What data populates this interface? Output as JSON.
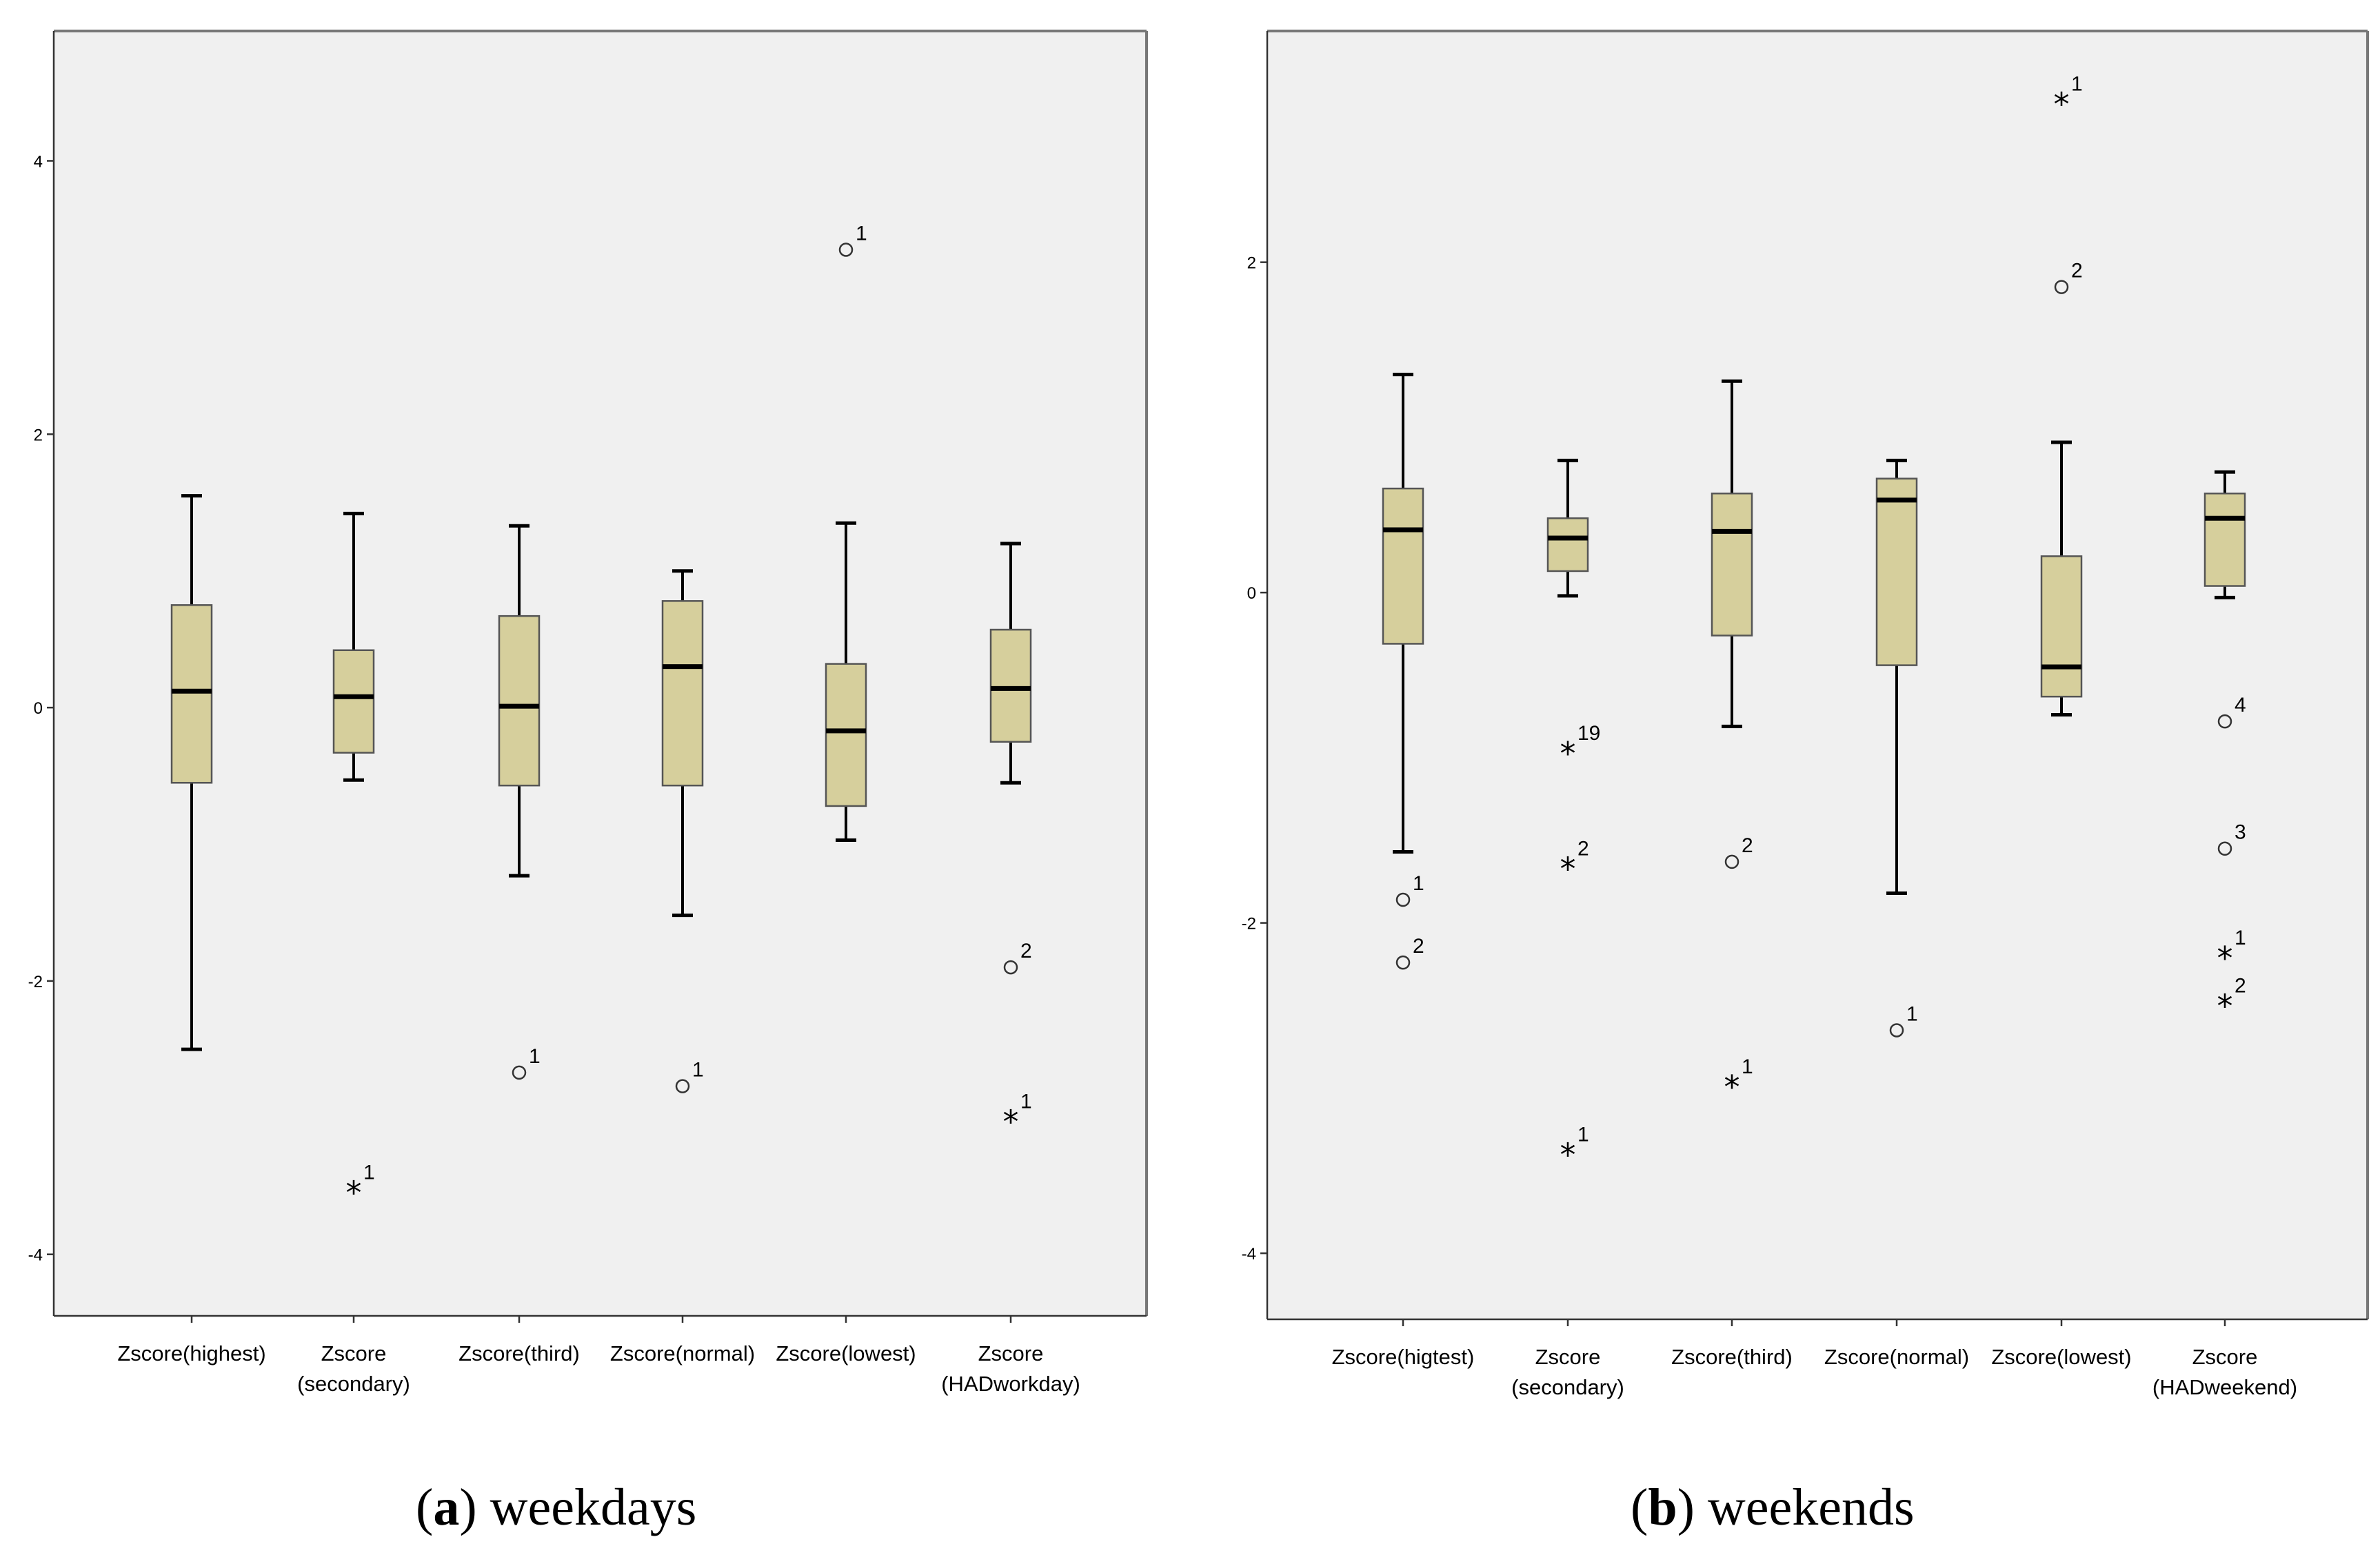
{
  "chart_data": [
    {
      "type": "boxplot",
      "panel_letter": "a",
      "caption": "weekdays",
      "ylim": [
        -4.45,
        4.95
      ],
      "yticks": [
        4,
        2,
        0,
        -2,
        -4
      ],
      "ytick_labels": [
        "4",
        "2",
        "0",
        "-2",
        "-4"
      ],
      "grid": false,
      "series": [
        {
          "label": [
            "Zscore(highest)"
          ],
          "whisker_low": -2.5,
          "q1": -0.55,
          "median": 0.12,
          "q3": 0.75,
          "whisker_high": 1.55,
          "outliers": []
        },
        {
          "label": [
            "Zscore",
            "(secondary)"
          ],
          "whisker_low": -0.53,
          "q1": -0.33,
          "median": 0.08,
          "q3": 0.42,
          "whisker_high": 1.42,
          "outliers": [
            {
              "value": -3.52,
              "marker": "*",
              "label": "1"
            }
          ]
        },
        {
          "label": [
            "Zscore(third)"
          ],
          "whisker_low": -1.23,
          "q1": -0.57,
          "median": 0.01,
          "q3": 0.67,
          "whisker_high": 1.33,
          "outliers": [
            {
              "value": -2.67,
              "marker": "o",
              "label": "1"
            }
          ]
        },
        {
          "label": [
            "Zscore(normal)"
          ],
          "whisker_low": -1.52,
          "q1": -0.57,
          "median": 0.3,
          "q3": 0.78,
          "whisker_high": 1.0,
          "outliers": [
            {
              "value": -2.77,
              "marker": "o",
              "label": "1"
            }
          ]
        },
        {
          "label": [
            "Zscore(lowest)"
          ],
          "whisker_low": -0.97,
          "q1": -0.72,
          "median": -0.17,
          "q3": 0.32,
          "whisker_high": 1.35,
          "outliers": [
            {
              "value": 3.35,
              "marker": "o",
              "label": "1"
            }
          ]
        },
        {
          "label": [
            "Zscore",
            "(HADworkday)"
          ],
          "whisker_low": -0.55,
          "q1": -0.25,
          "median": 0.14,
          "q3": 0.57,
          "whisker_high": 1.2,
          "outliers": [
            {
              "value": -1.9,
              "marker": "o",
              "label": "2"
            },
            {
              "value": -3.0,
              "marker": "*",
              "label": "1"
            }
          ]
        }
      ]
    },
    {
      "type": "boxplot",
      "panel_letter": "b",
      "caption": "weekends",
      "ylim": [
        -4.4,
        3.4
      ],
      "yticks": [
        2,
        0,
        -2,
        -4
      ],
      "ytick_labels": [
        "2",
        "0",
        "-2",
        "-4"
      ],
      "grid": false,
      "series": [
        {
          "label": [
            "Zscore(higtest)"
          ],
          "whisker_low": -1.57,
          "q1": -0.31,
          "median": 0.38,
          "q3": 0.63,
          "whisker_high": 1.32,
          "outliers": [
            {
              "value": -1.86,
              "marker": "o",
              "label": "1"
            },
            {
              "value": -2.24,
              "marker": "o",
              "label": "2"
            }
          ]
        },
        {
          "label": [
            "Zscore",
            "(secondary)"
          ],
          "whisker_low": -0.02,
          "q1": 0.13,
          "median": 0.33,
          "q3": 0.45,
          "whisker_high": 0.8,
          "outliers": [
            {
              "value": -0.95,
              "marker": "*",
              "label": "19"
            },
            {
              "value": -1.65,
              "marker": "*",
              "label": "2"
            },
            {
              "value": -3.38,
              "marker": "*",
              "label": "1"
            }
          ]
        },
        {
          "label": [
            "Zscore(third)"
          ],
          "whisker_low": -0.81,
          "q1": -0.26,
          "median": 0.37,
          "q3": 0.6,
          "whisker_high": 1.28,
          "outliers": [
            {
              "value": -1.63,
              "marker": "o",
              "label": "2"
            },
            {
              "value": -2.97,
              "marker": "*",
              "label": "1"
            }
          ]
        },
        {
          "label": [
            "Zscore(normal)"
          ],
          "whisker_low": -1.82,
          "q1": -0.44,
          "median": 0.56,
          "q3": 0.69,
          "whisker_high": 0.8,
          "outliers": [
            {
              "value": -2.65,
              "marker": "o",
              "label": "1"
            }
          ]
        },
        {
          "label": [
            "Zscore(lowest)"
          ],
          "whisker_low": -0.74,
          "q1": -0.63,
          "median": -0.45,
          "q3": 0.22,
          "whisker_high": 0.91,
          "outliers": [
            {
              "value": 2.98,
              "marker": "*",
              "label": "1"
            },
            {
              "value": 1.85,
              "marker": "o",
              "label": "2"
            }
          ]
        },
        {
          "label": [
            "Zscore",
            "(HADweekend)"
          ],
          "whisker_low": -0.03,
          "q1": 0.04,
          "median": 0.45,
          "q3": 0.6,
          "whisker_high": 0.73,
          "outliers": [
            {
              "value": -0.78,
              "marker": "o",
              "label": "4"
            },
            {
              "value": -1.55,
              "marker": "o",
              "label": "3"
            },
            {
              "value": -2.19,
              "marker": "*",
              "label": "1"
            },
            {
              "value": -2.48,
              "marker": "*",
              "label": "2"
            }
          ]
        }
      ]
    }
  ]
}
